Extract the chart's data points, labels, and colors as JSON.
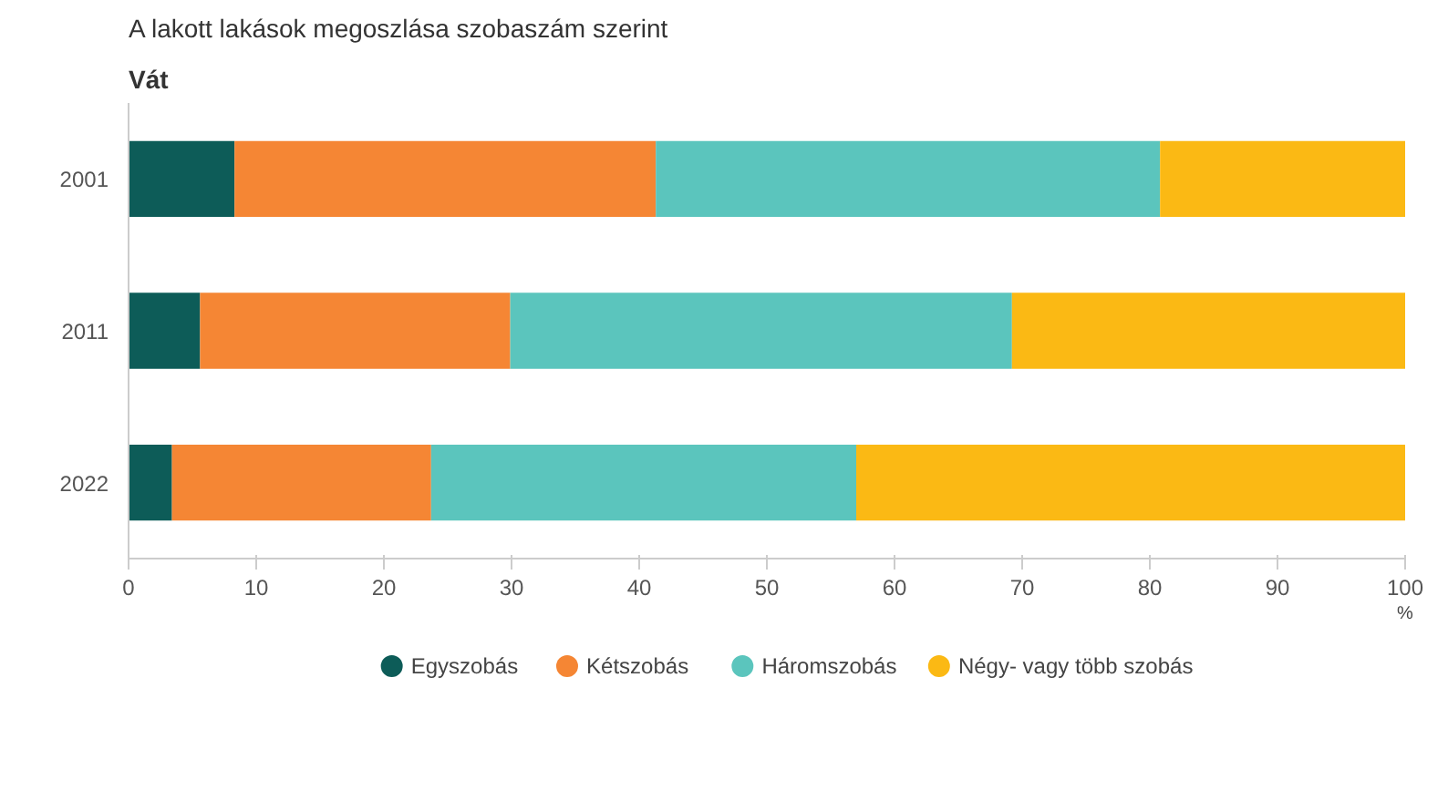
{
  "chart_data": {
    "type": "bar",
    "orientation": "horizontal",
    "stacked": true,
    "title": "A lakott lakások megoszlása szobaszám szerint",
    "subtitle": "Vát",
    "xlabel": "%",
    "categories": [
      "2001",
      "2011",
      "2022"
    ],
    "series": [
      {
        "name": "Egyszobás",
        "color": "#0d5c58",
        "values": [
          8.3,
          5.6,
          3.4
        ]
      },
      {
        "name": "Kétszobás",
        "color": "#f58634",
        "values": [
          33.0,
          24.3,
          20.3
        ]
      },
      {
        "name": "Háromszobás",
        "color": "#5bc5bd",
        "values": [
          39.5,
          39.3,
          33.3
        ]
      },
      {
        "name": "Négy- vagy több szobás",
        "color": "#fbb914",
        "values": [
          19.2,
          30.8,
          43.0
        ]
      }
    ],
    "xlim": [
      0,
      100
    ],
    "xticks": [
      0,
      10,
      20,
      30,
      40,
      50,
      60,
      70,
      80,
      90,
      100
    ],
    "grid": false,
    "legend": "bottom"
  }
}
